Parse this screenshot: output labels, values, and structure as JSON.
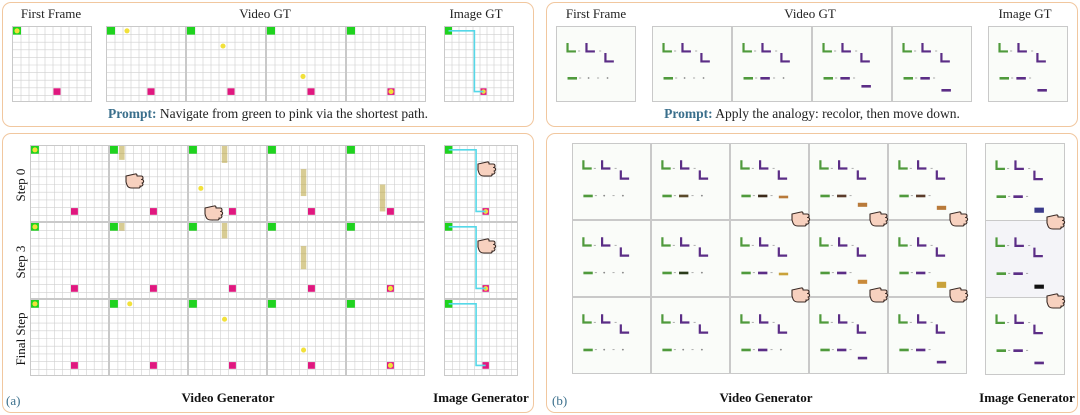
{
  "top_left": {
    "headers": [
      "First Frame",
      "Video GT",
      "Image GT"
    ],
    "prompt_label": "Prompt:",
    "prompt_text": " Navigate from green to pink via the shortest path."
  },
  "top_right": {
    "headers": [
      "First Frame",
      "Video GT",
      "Image GT"
    ],
    "prompt_label": "Prompt:",
    "prompt_text": " Apply the analogy: recolor, then move down."
  },
  "bottom_left": {
    "panel_label": "(a)",
    "rows": [
      "Step 0",
      "Step 3",
      "Final Step"
    ],
    "xlabel_video": "Video Generator",
    "xlabel_image": "Image Generator"
  },
  "bottom_right": {
    "panel_label": "(b)",
    "xlabel_video": "Video Generator",
    "xlabel_image": "Image Generator"
  },
  "colors": {
    "panel_border": "#f1c79f",
    "maze_start": "#1fd31f",
    "maze_goal": "#e0187f",
    "maze_agent": "#f2e13a",
    "path": "#55d8e8",
    "shape_green": "#4f9a3c",
    "shape_purple": "#5b2d86",
    "prompt_label": "#3a6f8c"
  },
  "icons": [
    "pointing-hand-icon"
  ]
}
